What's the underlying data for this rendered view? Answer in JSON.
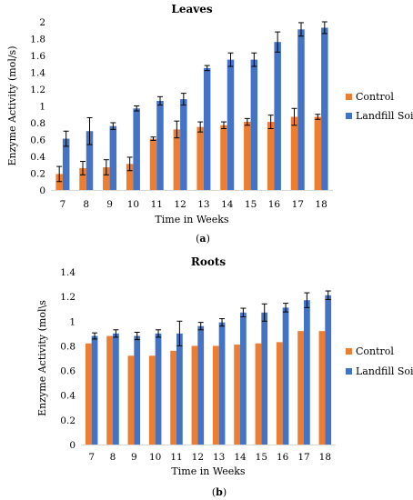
{
  "colors": {
    "control": "#ED7D31",
    "landfill": "#4472C4",
    "error": "#000000",
    "axis": "#D9D9D9"
  },
  "chart_data": [
    {
      "type": "bar",
      "title": "Leaves",
      "xlabel": "Time in Weeks",
      "ylabel": "Enzyme Activity (mol/s)",
      "caption_pre": "(",
      "caption_letter": "a",
      "caption_post": ")",
      "ylim": [
        0,
        2
      ],
      "yticks": [
        "0",
        "0.2",
        "0.4",
        "0.6",
        "0.8",
        "1",
        "1.2",
        "1.4",
        "1.6",
        "1.8",
        "2"
      ],
      "ytick_values": [
        0,
        0.2,
        0.4,
        0.6,
        0.8,
        1.0,
        1.2,
        1.4,
        1.6,
        1.8,
        2.0
      ],
      "categories": [
        "7",
        "8",
        "9",
        "10",
        "11",
        "12",
        "13",
        "14",
        "15",
        "16",
        "17",
        "18"
      ],
      "legend_position": "right",
      "series": [
        {
          "name": "Control",
          "values": [
            0.19,
            0.26,
            0.27,
            0.31,
            0.61,
            0.72,
            0.75,
            0.77,
            0.81,
            0.81,
            0.87,
            0.87
          ],
          "errors": [
            0.09,
            0.08,
            0.09,
            0.08,
            0.02,
            0.1,
            0.06,
            0.04,
            0.04,
            0.08,
            0.1,
            0.03
          ]
        },
        {
          "name": "Landfill Soil",
          "values": [
            0.61,
            0.7,
            0.76,
            0.97,
            1.06,
            1.08,
            1.45,
            1.55,
            1.55,
            1.76,
            1.91,
            1.93
          ],
          "errors": [
            0.09,
            0.16,
            0.04,
            0.03,
            0.05,
            0.07,
            0.03,
            0.08,
            0.08,
            0.12,
            0.08,
            0.07
          ]
        }
      ]
    },
    {
      "type": "bar",
      "title": "Roots",
      "xlabel": "Time in Weeks",
      "ylabel": "Enzyme Activity (mol\\s",
      "caption_pre": "(",
      "caption_letter": "b",
      "caption_post": ")",
      "ylim": [
        0,
        1.4
      ],
      "yticks": [
        "0",
        "0.2",
        "0.4",
        "0.6",
        "0.8",
        "1",
        "1.2",
        "1.4"
      ],
      "ytick_values": [
        0,
        0.2,
        0.4,
        0.6,
        0.8,
        1.0,
        1.2,
        1.4
      ],
      "categories": [
        "7",
        "8",
        "9",
        "10",
        "11",
        "12",
        "13",
        "14",
        "15",
        "16",
        "17",
        "18"
      ],
      "legend_position": "right",
      "series": [
        {
          "name": "Control",
          "values": [
            0.82,
            0.88,
            0.72,
            0.72,
            0.76,
            0.8,
            0.8,
            0.81,
            0.82,
            0.83,
            0.92,
            0.92
          ],
          "errors": [
            0,
            0,
            0,
            0,
            0,
            0,
            0,
            0,
            0,
            0,
            0,
            0
          ]
        },
        {
          "name": "Landfill Soil",
          "values": [
            0.88,
            0.9,
            0.88,
            0.9,
            0.9,
            0.96,
            0.99,
            1.07,
            1.07,
            1.11,
            1.17,
            1.21
          ],
          "errors": [
            0.025,
            0.03,
            0.03,
            0.03,
            0.1,
            0.03,
            0.03,
            0.035,
            0.07,
            0.035,
            0.06,
            0.035
          ]
        }
      ]
    }
  ]
}
